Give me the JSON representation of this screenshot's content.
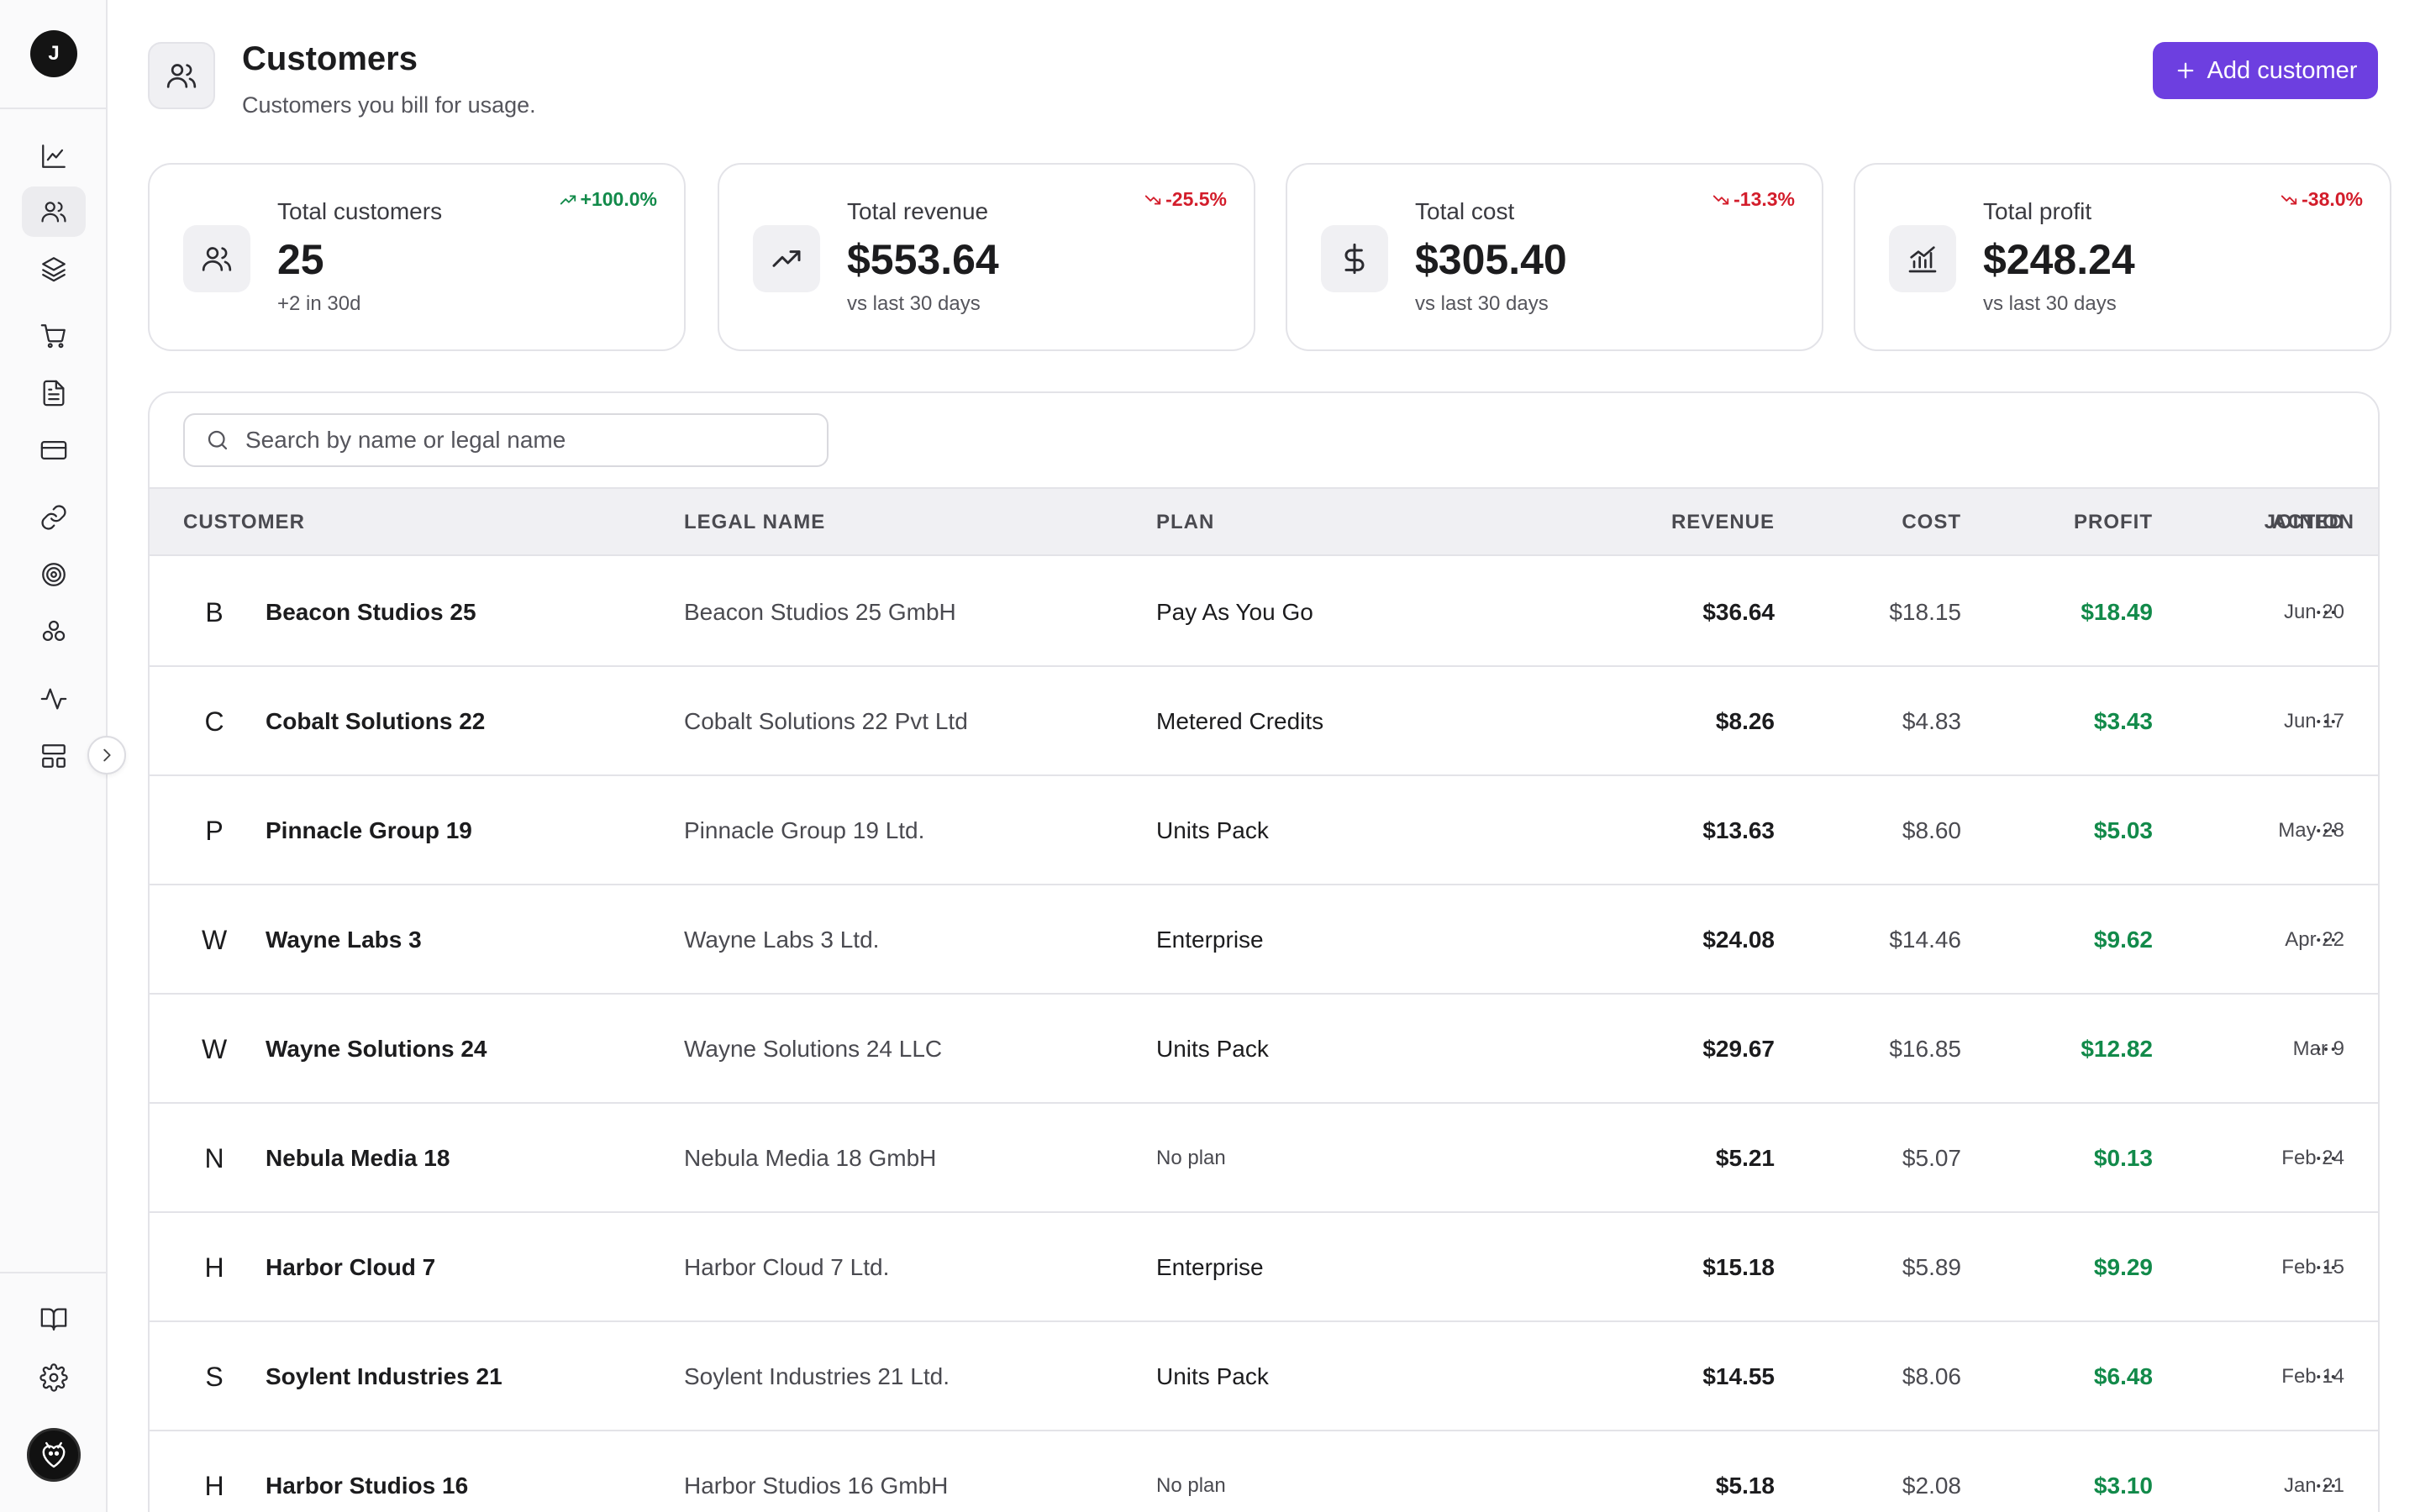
{
  "sidebar": {
    "user_initial": "J",
    "nav": [
      {
        "name": "analytics",
        "icon": "line-chart-icon"
      },
      {
        "name": "customers",
        "icon": "users-icon",
        "active": true
      },
      {
        "name": "products",
        "icon": "layers-icon"
      },
      {
        "name": "orders",
        "icon": "cart-icon"
      },
      {
        "name": "invoices",
        "icon": "document-icon"
      },
      {
        "name": "payments",
        "icon": "credit-card-icon"
      },
      {
        "name": "integrations",
        "icon": "link-icon"
      },
      {
        "name": "goals",
        "icon": "target-icon"
      },
      {
        "name": "components",
        "icon": "boxes-icon"
      },
      {
        "name": "activity",
        "icon": "pulse-icon"
      },
      {
        "name": "layout",
        "icon": "layout-icon"
      }
    ],
    "bottom": [
      {
        "name": "docs",
        "icon": "book-icon"
      },
      {
        "name": "settings",
        "icon": "gear-icon"
      }
    ]
  },
  "header": {
    "title": "Customers",
    "subtitle": "Customers you bill for usage.",
    "add_button_label": "Add customer"
  },
  "stats": [
    {
      "label": "Total customers",
      "value": "25",
      "sub": "+2 in 30d",
      "delta": "+100.0%",
      "trend": "up",
      "icon": "users-icon"
    },
    {
      "label": "Total revenue",
      "value": "$553.64",
      "sub": "vs last 30 days",
      "delta": "-25.5%",
      "trend": "down",
      "icon": "trending-up-icon"
    },
    {
      "label": "Total cost",
      "value": "$305.40",
      "sub": "vs last 30 days",
      "delta": "-13.3%",
      "trend": "down",
      "icon": "dollar-icon"
    },
    {
      "label": "Total profit",
      "value": "$248.24",
      "sub": "vs last 30 days",
      "delta": "-38.0%",
      "trend": "down",
      "icon": "bar-chart-icon"
    }
  ],
  "search": {
    "placeholder": "Search by name or legal name",
    "value": ""
  },
  "table": {
    "columns": {
      "customer": "CUSTOMER",
      "legal_name": "LEGAL NAME",
      "plan": "PLAN",
      "revenue": "REVENUE",
      "cost": "COST",
      "profit": "PROFIT",
      "joined": "JOINED",
      "action": "ACTION"
    },
    "rows": [
      {
        "initial": "B",
        "name": "Beacon Studios 25",
        "legal": "Beacon Studios 25 GmbH",
        "plan": "Pay As You Go",
        "revenue": "$36.64",
        "cost": "$18.15",
        "profit": "$18.49",
        "joined": "Jun 20"
      },
      {
        "initial": "C",
        "name": "Cobalt Solutions 22",
        "legal": "Cobalt Solutions 22 Pvt Ltd",
        "plan": "Metered Credits",
        "revenue": "$8.26",
        "cost": "$4.83",
        "profit": "$3.43",
        "joined": "Jun 17"
      },
      {
        "initial": "P",
        "name": "Pinnacle Group 19",
        "legal": "Pinnacle Group 19 Ltd.",
        "plan": "Units Pack",
        "revenue": "$13.63",
        "cost": "$8.60",
        "profit": "$5.03",
        "joined": "May 28"
      },
      {
        "initial": "W",
        "name": "Wayne Labs 3",
        "legal": "Wayne Labs 3 Ltd.",
        "plan": "Enterprise",
        "revenue": "$24.08",
        "cost": "$14.46",
        "profit": "$9.62",
        "joined": "Apr 22"
      },
      {
        "initial": "W",
        "name": "Wayne Solutions 24",
        "legal": "Wayne Solutions 24 LLC",
        "plan": "Units Pack",
        "revenue": "$29.67",
        "cost": "$16.85",
        "profit": "$12.82",
        "joined": "Mar 9"
      },
      {
        "initial": "N",
        "name": "Nebula Media 18",
        "legal": "Nebula Media 18 GmbH",
        "plan": "No plan",
        "revenue": "$5.21",
        "cost": "$5.07",
        "profit": "$0.13",
        "joined": "Feb 24"
      },
      {
        "initial": "H",
        "name": "Harbor Cloud 7",
        "legal": "Harbor Cloud 7 Ltd.",
        "plan": "Enterprise",
        "revenue": "$15.18",
        "cost": "$5.89",
        "profit": "$9.29",
        "joined": "Feb 15"
      },
      {
        "initial": "S",
        "name": "Soylent Industries 21",
        "legal": "Soylent Industries 21 Ltd.",
        "plan": "Units Pack",
        "revenue": "$14.55",
        "cost": "$8.06",
        "profit": "$6.48",
        "joined": "Feb 14"
      },
      {
        "initial": "H",
        "name": "Harbor Studios 16",
        "legal": "Harbor Studios 16 GmbH",
        "plan": "No plan",
        "revenue": "$5.18",
        "cost": "$2.08",
        "profit": "$3.10",
        "joined": "Jan 21"
      }
    ]
  },
  "colors": {
    "accent": "#6d3fe0",
    "positive": "#128a4a",
    "negative": "#d31d2b"
  }
}
